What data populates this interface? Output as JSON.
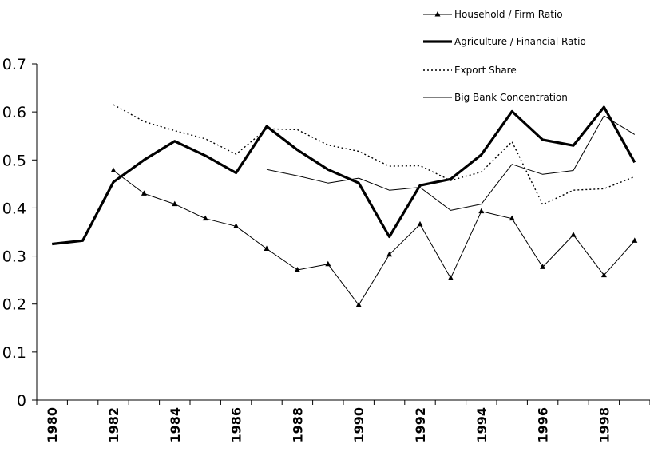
{
  "chart_data": {
    "type": "line",
    "title": "",
    "xlabel": "",
    "ylabel": "",
    "x": [
      1980,
      1981,
      1982,
      1983,
      1984,
      1985,
      1986,
      1987,
      1988,
      1989,
      1990,
      1991,
      1992,
      1993,
      1994,
      1995,
      1996,
      1997,
      1998,
      1999
    ],
    "x_tick_labels": [
      "1980",
      "1982",
      "1984",
      "1986",
      "1988",
      "1990",
      "1992",
      "1994",
      "1996",
      "1998"
    ],
    "y_tick_labels": [
      "0",
      "0.1",
      "0.2",
      "0.3",
      "0.4",
      "0.5",
      "0.6",
      "0.7"
    ],
    "ylim": [
      0,
      0.7
    ],
    "grid": false,
    "legend_position": "top-right",
    "series": [
      {
        "name": "Household / Firm Ratio",
        "style": "thin-triangle-markers",
        "color": "#000000",
        "values": [
          null,
          null,
          0.478,
          0.43,
          0.408,
          0.378,
          0.362,
          0.315,
          0.271,
          0.283,
          0.198,
          0.303,
          0.366,
          0.254,
          0.393,
          0.378,
          0.277,
          0.344,
          0.26,
          0.332
        ]
      },
      {
        "name": "Agriculture / Financial Ratio",
        "style": "thick",
        "color": "#000000",
        "values": [
          0.325,
          0.332,
          0.454,
          0.5,
          0.539,
          0.509,
          0.473,
          0.57,
          0.521,
          0.48,
          0.452,
          0.34,
          0.447,
          0.46,
          0.511,
          0.601,
          0.542,
          0.53,
          0.61,
          0.495
        ]
      },
      {
        "name": "Export Share",
        "style": "dotted",
        "color": "#000000",
        "values": [
          null,
          null,
          0.615,
          0.58,
          0.561,
          0.544,
          0.512,
          0.565,
          0.563,
          0.531,
          0.518,
          0.487,
          0.488,
          0.457,
          0.475,
          0.538,
          0.407,
          0.437,
          0.44,
          0.465
        ]
      },
      {
        "name": "Big Bank Concentration",
        "style": "thin",
        "color": "#000000",
        "values": [
          null,
          null,
          null,
          null,
          null,
          null,
          null,
          0.48,
          0.467,
          0.452,
          0.462,
          0.437,
          0.443,
          0.395,
          0.408,
          0.491,
          0.47,
          0.478,
          0.592,
          0.553
        ]
      }
    ]
  }
}
